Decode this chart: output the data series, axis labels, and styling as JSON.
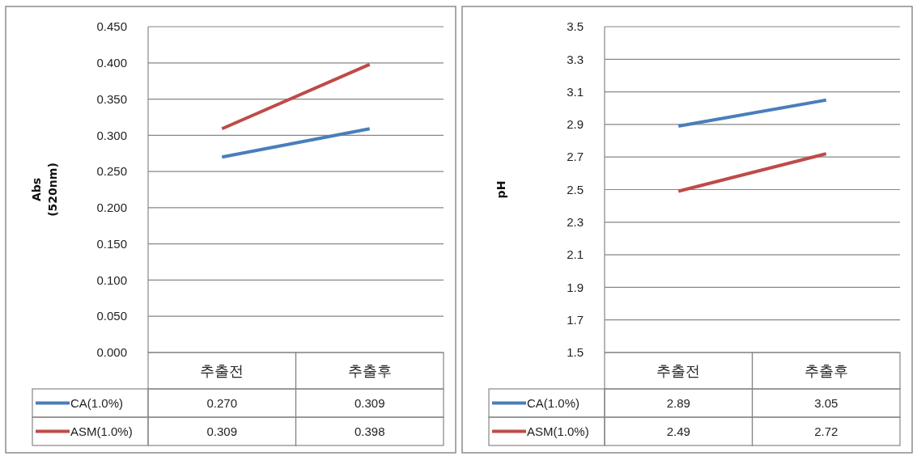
{
  "chart_data": [
    {
      "type": "line",
      "ylabel": "Abs\n(520nm)",
      "categories": [
        "추출전",
        "추출후"
      ],
      "series": [
        {
          "name": "CA(1.0%)",
          "color": "#4a7ebb",
          "values": [
            0.27,
            0.309
          ],
          "value_labels": [
            "0.270",
            "0.309"
          ]
        },
        {
          "name": "ASM(1.0%)",
          "color": "#be4b48",
          "values": [
            0.309,
            0.398
          ],
          "value_labels": [
            "0.309",
            "0.398"
          ]
        }
      ],
      "ylim": [
        0,
        0.45
      ],
      "yticks": [
        {
          "value": 0,
          "label": "0.000"
        },
        {
          "value": 0.05,
          "label": "0.050"
        },
        {
          "value": 0.1,
          "label": "0.100"
        },
        {
          "value": 0.15,
          "label": "0.150"
        },
        {
          "value": 0.2,
          "label": "0.200"
        },
        {
          "value": 0.25,
          "label": "0.250"
        },
        {
          "value": 0.3,
          "label": "0.300"
        },
        {
          "value": 0.35,
          "label": "0.350"
        },
        {
          "value": 0.4,
          "label": "0.400"
        },
        {
          "value": 0.45,
          "label": "0.450"
        }
      ],
      "grid": "y",
      "legend": "bottom"
    },
    {
      "type": "line",
      "ylabel": "pH",
      "categories": [
        "추출전",
        "추출후"
      ],
      "series": [
        {
          "name": "CA(1.0%)",
          "color": "#4a7ebb",
          "values": [
            2.89,
            3.05
          ]
        },
        {
          "name": "ASM(1.0%)",
          "color": "#be4b48",
          "values": [
            2.49,
            2.72
          ]
        }
      ],
      "ylim": [
        1.5,
        3.5
      ],
      "yticks": [
        1.5,
        1.7,
        1.9,
        2.1,
        2.3,
        2.5,
        2.7,
        2.9,
        3.1,
        3.3,
        3.5
      ],
      "grid": "y",
      "legend": "bottom",
      "data_labels": true
    }
  ]
}
